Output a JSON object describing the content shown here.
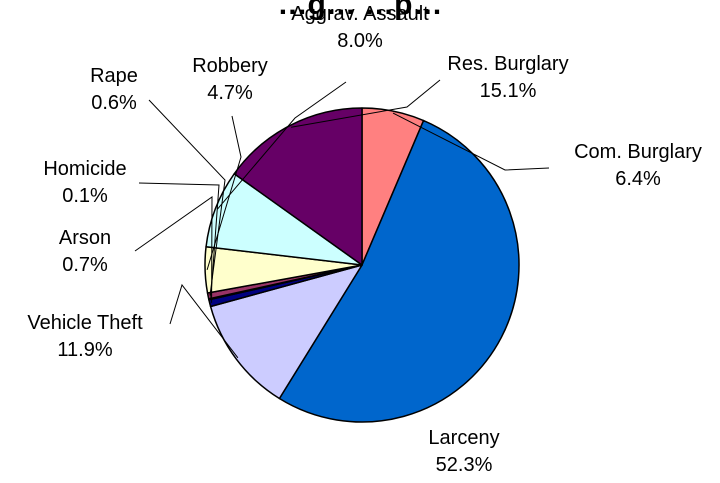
{
  "chart_data": {
    "type": "pie",
    "title": "…g… …p…",
    "start_angle_deg": 0,
    "direction": "clockwise",
    "edge_color": "#000000",
    "slices": [
      {
        "label": "Com. Burglary",
        "percent_label": "6.4%",
        "value": 6.4,
        "color": "#FF8080"
      },
      {
        "label": "Larceny",
        "percent_label": "52.3%",
        "value": 52.3,
        "color": "#0066CC"
      },
      {
        "label": "Vehicle Theft",
        "percent_label": "11.9%",
        "value": 11.9,
        "color": "#CCCCFF"
      },
      {
        "label": "Arson",
        "percent_label": "0.7%",
        "value": 0.7,
        "color": "#000080"
      },
      {
        "label": "Homicide",
        "percent_label": "0.1%",
        "value": 0.1,
        "color": "#FF00FF"
      },
      {
        "label": "Rape",
        "percent_label": "0.6%",
        "value": 0.6,
        "color": "#993366"
      },
      {
        "label": "Robbery",
        "percent_label": "4.7%",
        "value": 4.7,
        "color": "#FFFFCC"
      },
      {
        "label": "Aggrav. Assault",
        "percent_label": "8.0%",
        "value": 8.0,
        "color": "#CCFFFF"
      },
      {
        "label": "Res. Burglary",
        "percent_label": "15.1%",
        "value": 15.1,
        "color": "#660066"
      }
    ]
  }
}
